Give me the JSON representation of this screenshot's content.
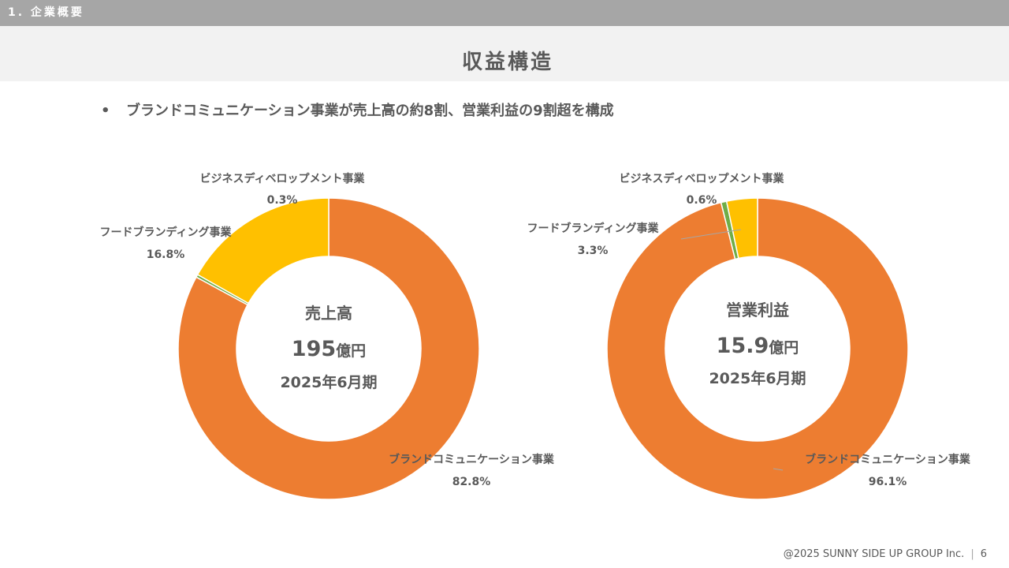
{
  "header": {
    "section": "1. 企業概要",
    "title": "収益構造"
  },
  "bullet": "ブランドコミュニケーション事業が売上高の約8割、営業利益の9割超を構成",
  "colors": {
    "brand_communication": "#ed7d31",
    "food_branding": "#ffc000",
    "business_development": "#70ad47"
  },
  "chart_data": [
    {
      "type": "pie",
      "style": "donut",
      "center": {
        "line1": "売上高",
        "value": "195",
        "unit": "億円",
        "period": "2025年6月期"
      },
      "slices": [
        {
          "name": "ブランドコミュニケーション事業",
          "value": 82.8,
          "label": "82.8%",
          "color": "#ed7d31"
        },
        {
          "name": "ビジネスディベロップメント事業",
          "value": 0.3,
          "label": "0.3%",
          "color": "#70ad47"
        },
        {
          "name": "フードブランディング事業",
          "value": 16.8,
          "label": "16.8%",
          "color": "#ffc000"
        }
      ]
    },
    {
      "type": "pie",
      "style": "donut",
      "center": {
        "line1": "営業利益",
        "value": "15.9",
        "unit": "億円",
        "period": "2025年6月期"
      },
      "slices": [
        {
          "name": "ブランドコミュニケーション事業",
          "value": 96.1,
          "label": "96.1%",
          "color": "#ed7d31"
        },
        {
          "name": "ビジネスディベロップメント事業",
          "value": 0.6,
          "label": "0.6%",
          "color": "#70ad47"
        },
        {
          "name": "フードブランディング事業",
          "value": 3.3,
          "label": "3.3%",
          "color": "#ffc000"
        }
      ]
    }
  ],
  "footer": {
    "copyright": "@2025 SUNNY SIDE UP GROUP Inc.",
    "page": "6"
  }
}
